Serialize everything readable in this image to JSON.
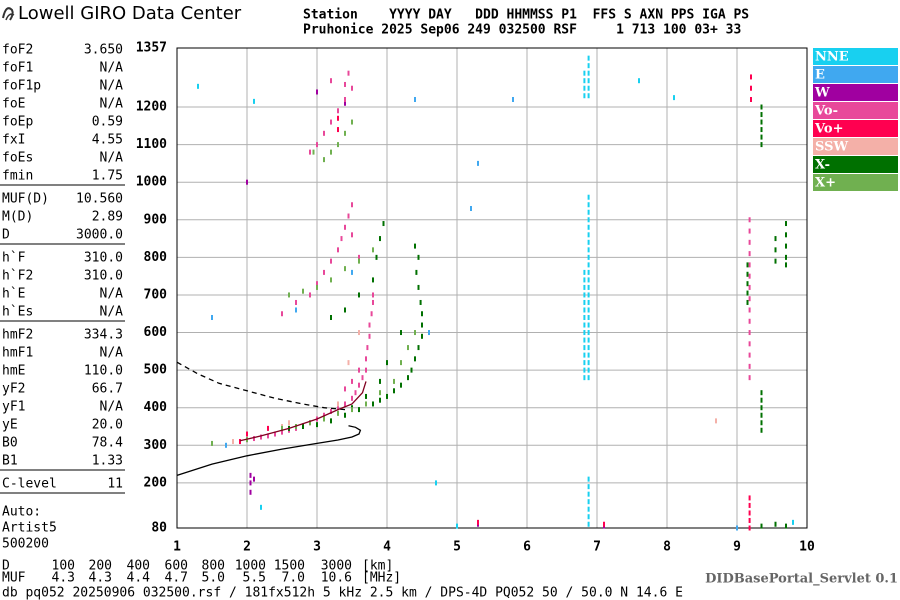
{
  "header": {
    "title": "Lowell GIRO Data Center",
    "line1": "Station    YYYY DAY   DDD HHMMSS P1  FFS S AXN PPS IGA PS",
    "line2": "Pruhonice 2025 Sep06 249 032500 RSF     1 713 100 03+ 33"
  },
  "parameters": [
    [
      [
        "foF2",
        "3.650"
      ],
      [
        "foF1",
        "N/A"
      ],
      [
        "foF1p",
        "N/A"
      ],
      [
        "foE",
        "N/A"
      ],
      [
        "foEp",
        "0.59"
      ],
      [
        "fxI",
        "4.55"
      ],
      [
        "foEs",
        "N/A"
      ],
      [
        "fmin",
        "1.75"
      ]
    ],
    [
      [
        "MUF(D)",
        "10.560"
      ],
      [
        "M(D)",
        "2.89"
      ],
      [
        "D",
        "3000.0"
      ]
    ],
    [
      [
        "h`F",
        "310.0"
      ],
      [
        "h`F2",
        "310.0"
      ],
      [
        "h`E",
        "N/A"
      ],
      [
        "h`Es",
        "N/A"
      ]
    ],
    [
      [
        "hmF2",
        "334.3"
      ],
      [
        "hmF1",
        "N/A"
      ],
      [
        "hmE",
        "110.0"
      ],
      [
        "yF2",
        "66.7"
      ],
      [
        "yF1",
        "N/A"
      ],
      [
        "yE",
        "20.0"
      ],
      [
        "B0",
        "78.4"
      ],
      [
        "B1",
        "1.33"
      ]
    ],
    [
      [
        "C-level",
        "11"
      ]
    ]
  ],
  "autoscaling": [
    "Auto:",
    "Artist5",
    "500200"
  ],
  "distance_table": [
    {
      "label": "D",
      "values": [
        "100",
        "200",
        "400",
        "600",
        "800",
        "1000",
        "1500",
        "3000"
      ],
      "unit": "[km]"
    },
    {
      "label": "MUF",
      "values": [
        "4.3",
        "4.3",
        "4.4",
        "4.7",
        "5.0",
        "5.5",
        "7.0",
        "10.6"
      ],
      "unit": "[MHz]"
    }
  ],
  "footer": "db pq052 20250906 032500.rsf / 181fx512h 5 kHz 2.5 km / DPS-4D PQ052 50 / 50.0 N 14.6 E",
  "servlet": "DIDBasePortal_Servlet 0.1",
  "chart_data": {
    "type": "scatter",
    "xlim": [
      1,
      10
    ],
    "ylim": [
      80,
      1357
    ],
    "xticks": [
      1,
      2,
      3,
      4,
      5,
      6,
      7,
      8,
      9,
      10
    ],
    "yticks": [
      80,
      200,
      300,
      400,
      500,
      600,
      700,
      800,
      900,
      1000,
      1100,
      1200,
      1357
    ],
    "grid": true,
    "legend": "right",
    "series": [
      {
        "name": "NNE",
        "color": "#18d0f0",
        "x": [
          6.88,
          6.88,
          6.88,
          6.88,
          6.88,
          6.88,
          6.88,
          6.88,
          6.88,
          6.88,
          6.88,
          6.88,
          6.88,
          6.88,
          6.88,
          6.88,
          6.88,
          6.88,
          6.88,
          6.88,
          6.88,
          6.88,
          6.88,
          6.88,
          6.88,
          6.82,
          6.82,
          6.82,
          6.82,
          6.82,
          6.82,
          6.82,
          6.82,
          6.82,
          6.82,
          6.82,
          6.82,
          6.82,
          6.82,
          6.82,
          6.82,
          6.82,
          6.82,
          6.82,
          6.88,
          6.88,
          6.88,
          6.88,
          6.88,
          6.88,
          6.88,
          6.88,
          6.88,
          6.88,
          6.88,
          6.88,
          6.88,
          1.3,
          2.1,
          5.0,
          7.6,
          8.1,
          9.8,
          4.7,
          2.2
        ],
        "y": [
          480,
          500,
          520,
          540,
          560,
          580,
          600,
          620,
          640,
          660,
          680,
          700,
          720,
          740,
          760,
          780,
          800,
          820,
          840,
          860,
          880,
          900,
          920,
          940,
          960,
          480,
          500,
          520,
          540,
          560,
          580,
          600,
          620,
          640,
          660,
          680,
          700,
          720,
          740,
          760,
          1230,
          1250,
          1270,
          1290,
          1230,
          1250,
          1270,
          1290,
          1310,
          1330,
          90,
          110,
          130,
          150,
          170,
          190,
          210,
          1255,
          1215,
          85,
          1270,
          1225,
          95,
          200,
          135
        ]
      },
      {
        "name": "E",
        "color": "#40a8f0",
        "x": [
          1.5,
          1.7,
          2.7,
          4.6,
          5.2,
          5.3,
          3.5,
          9.0,
          4.4,
          5.8
        ],
        "y": [
          640,
          300,
          660,
          600,
          930,
          1050,
          760,
          80,
          1220,
          1220
        ]
      },
      {
        "name": "W",
        "color": "#a000a0",
        "x": [
          2.05,
          2.05,
          2.05,
          2.1,
          7.1,
          5.3,
          3.4,
          2.0,
          3.0
        ],
        "y": [
          175,
          200,
          220,
          210,
          85,
          90,
          1210,
          1000,
          1240
        ]
      },
      {
        "name": "Vo-",
        "color": "#e8489a",
        "x": [
          1.9,
          2.0,
          2.1,
          2.2,
          2.3,
          2.4,
          2.5,
          2.6,
          2.7,
          2.8,
          2.9,
          3.0,
          3.1,
          3.2,
          3.3,
          3.4,
          3.5,
          3.55,
          3.6,
          3.65,
          3.7,
          3.7,
          3.72,
          3.75,
          3.75,
          3.78,
          3.8,
          3.8,
          3.6,
          3.5,
          3.4,
          2.5,
          2.7,
          2.9,
          3.0,
          3.1,
          3.2,
          3.3,
          3.35,
          3.4,
          3.45,
          3.5,
          3.5,
          3.6,
          2.9,
          3.0,
          3.1,
          3.2,
          3.3,
          3.4,
          3.4,
          3.45,
          3.5,
          3.2,
          9.18,
          9.18,
          9.18,
          9.18,
          9.18,
          9.18,
          9.18,
          9.18,
          9.18,
          9.18,
          9.18,
          9.18,
          9.18,
          9.18,
          9.18
        ],
        "y": [
          310,
          315,
          318,
          322,
          325,
          330,
          335,
          340,
          345,
          352,
          360,
          370,
          380,
          390,
          400,
          410,
          425,
          440,
          460,
          480,
          500,
          530,
          560,
          590,
          620,
          650,
          680,
          700,
          500,
          470,
          450,
          650,
          680,
          700,
          730,
          760,
          790,
          820,
          850,
          880,
          910,
          940,
          860,
          800,
          1080,
          1100,
          1130,
          1160,
          1190,
          1220,
          1260,
          1290,
          1250,
          1270,
          480,
          510,
          540,
          570,
          600,
          630,
          660,
          690,
          720,
          750,
          780,
          810,
          840,
          870,
          900
        ]
      },
      {
        "name": "Vo+",
        "color": "#ff0050",
        "x": [
          9.2,
          9.2,
          9.2,
          9.18,
          9.18,
          9.18,
          9.18,
          9.18,
          3.3,
          3.3,
          2.0,
          2.3,
          1.9,
          5.3,
          7.1
        ],
        "y": [
          1220,
          1250,
          1280,
          120,
          140,
          160,
          100,
          80,
          1170,
          1140,
          330,
          345,
          310,
          95,
          90
        ]
      },
      {
        "name": "SSW",
        "color": "#f4b0a8",
        "x": [
          1.8,
          2.6,
          3.3,
          3.45,
          8.7,
          2.5,
          3.6
        ],
        "y": [
          310,
          360,
          410,
          520,
          365,
          350,
          600
        ]
      },
      {
        "name": "X-",
        "color": "#007000",
        "x": [
          2.6,
          2.8,
          3.0,
          3.2,
          3.4,
          3.6,
          3.8,
          3.9,
          4.0,
          4.1,
          4.2,
          4.3,
          4.35,
          4.4,
          4.45,
          4.5,
          4.5,
          4.5,
          4.48,
          4.45,
          4.42,
          4.45,
          4.4,
          4.2,
          4.0,
          3.9,
          3.7,
          3.5,
          3.2,
          3.4,
          3.6,
          3.8,
          3.85,
          3.9,
          3.95,
          9.35,
          9.35,
          9.35,
          9.35,
          9.35,
          9.35,
          9.15,
          9.15,
          9.15,
          9.15,
          9.15,
          9.35,
          9.35,
          9.35,
          9.35,
          9.35,
          9.35,
          9.55,
          9.55,
          9.55,
          9.7,
          9.7,
          9.7,
          9.7,
          9.7,
          9.35,
          9.55,
          9.7
        ],
        "y": [
          345,
          350,
          355,
          365,
          380,
          395,
          410,
          420,
          430,
          445,
          460,
          480,
          500,
          530,
          560,
          590,
          620,
          650,
          680,
          720,
          760,
          800,
          830,
          600,
          520,
          470,
          430,
          400,
          640,
          660,
          700,
          740,
          800,
          850,
          890,
          340,
          360,
          380,
          400,
          420,
          440,
          680,
          705,
          730,
          755,
          780,
          1100,
          1120,
          1140,
          1160,
          1180,
          1200,
          790,
          820,
          850,
          780,
          800,
          830,
          860,
          890,
          85,
          90,
          85
        ]
      },
      {
        "name": "X+",
        "color": "#70b050",
        "x": [
          2.5,
          2.7,
          2.9,
          3.1,
          3.3,
          3.5,
          3.7,
          3.9,
          4.1,
          4.2,
          4.3,
          4.4,
          2.6,
          2.8,
          3.0,
          3.2,
          3.4,
          3.6,
          3.8,
          3.1,
          3.2,
          3.3,
          3.4,
          3.5,
          2.95,
          1.5,
          2.0
        ],
        "y": [
          345,
          350,
          360,
          370,
          385,
          395,
          410,
          440,
          470,
          520,
          560,
          600,
          700,
          710,
          720,
          740,
          770,
          790,
          820,
          1060,
          1080,
          1100,
          1130,
          1160,
          1080,
          305,
          315
        ]
      }
    ],
    "lines": [
      {
        "color": "#000000",
        "dashed": false,
        "x": [
          1.0,
          1.5,
          2.0,
          2.5,
          3.0,
          3.3,
          3.5,
          3.6,
          3.62,
          3.55,
          3.45
        ],
        "y": [
          220,
          250,
          272,
          290,
          305,
          314,
          322,
          330,
          340,
          348,
          352
        ]
      },
      {
        "color": "#000000",
        "dashed": true,
        "x": [
          1.0,
          1.3,
          1.6,
          2.0,
          2.4,
          2.8,
          3.1,
          3.4
        ],
        "y": [
          521,
          490,
          465,
          445,
          425,
          410,
          400,
          395
        ]
      },
      {
        "color": "#800020",
        "dashed": false,
        "x": [
          1.9,
          2.2,
          2.6,
          3.0,
          3.3,
          3.5,
          3.65,
          3.7
        ],
        "y": [
          312,
          325,
          345,
          370,
          395,
          410,
          440,
          470
        ]
      }
    ]
  }
}
